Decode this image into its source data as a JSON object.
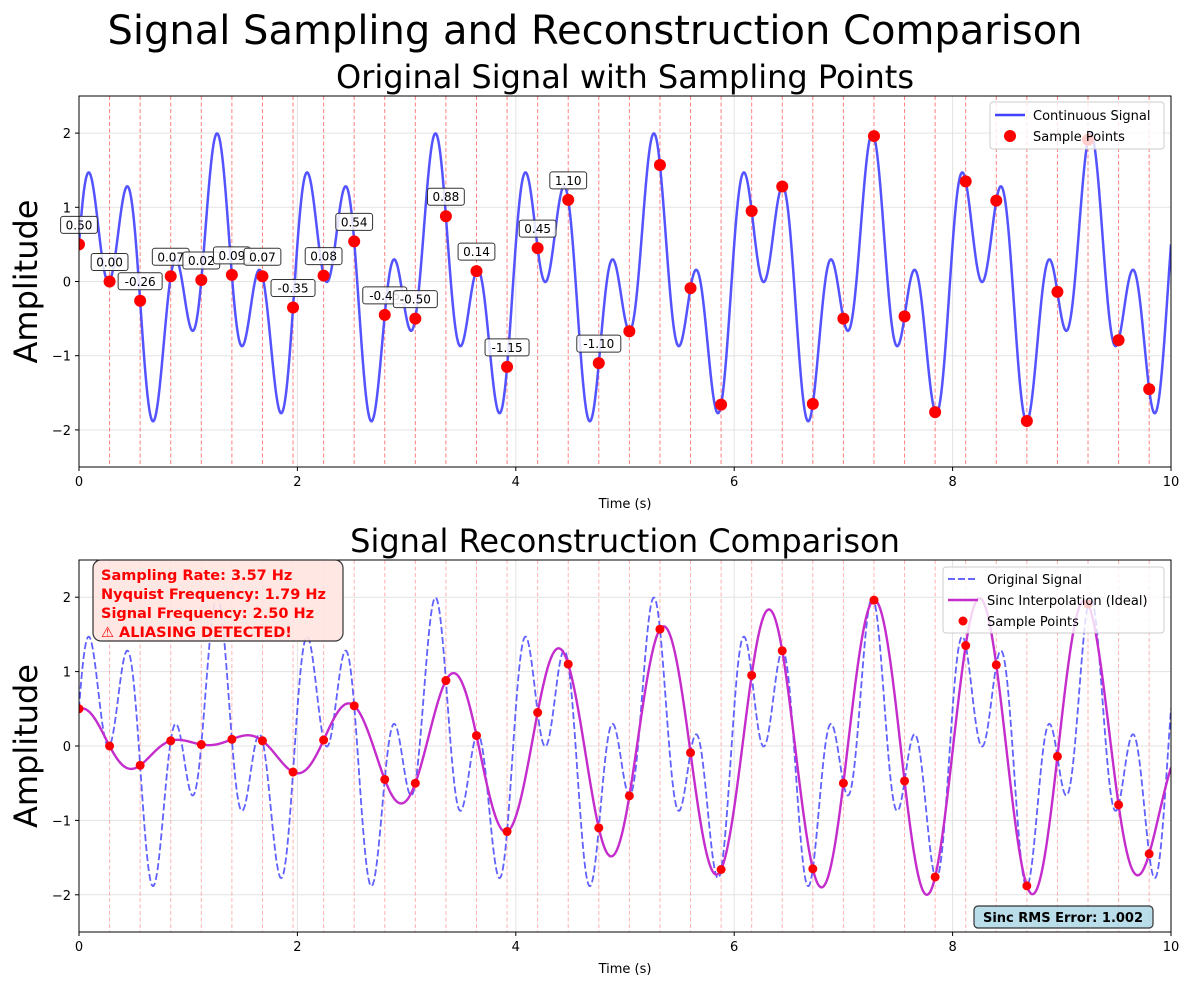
{
  "figure": {
    "title": "Signal Sampling and Reconstruction Comparison"
  },
  "chart_data": [
    {
      "type": "line",
      "title": "Original Signal with Sampling Points",
      "xlabel": "Time (s)",
      "ylabel": "Amplitude",
      "xlim": [
        0,
        10
      ],
      "ylim": [
        -2.5,
        2.5
      ],
      "xticks": [
        0,
        2,
        4,
        6,
        8,
        10
      ],
      "yticks": [
        -2,
        -1,
        0,
        1,
        2
      ],
      "grid": true,
      "legend": {
        "placement": "upper right",
        "entries": [
          "Continuous Signal",
          "Sample Points"
        ]
      },
      "continuous_signal": {
        "name": "Continuous Signal",
        "color": "#4040ff",
        "components": [
          {
            "function": "sin",
            "frequency_hz": 1.0,
            "amplitude": 1.0,
            "phase_deg": 0
          },
          {
            "function": "sin",
            "frequency_hz": 2.5,
            "amplitude": 1.0,
            "phase_deg": 30
          }
        ]
      },
      "sample_points": {
        "name": "Sample Points",
        "color": "#ff0000"
      },
      "sample_lines_color": "#ff0000",
      "value_labels": [
        "0.50",
        "0.00",
        "-0.26",
        "0.07",
        "0.02",
        "0.09",
        "0.07",
        "-0.35",
        "0.08",
        "0.54",
        "-0.45",
        "-0.50",
        "0.88",
        "0.14",
        "-1.15",
        "0.45",
        "1.10",
        "-1.10"
      ]
    },
    {
      "type": "line",
      "title": "Signal Reconstruction Comparison",
      "xlabel": "Time (s)",
      "ylabel": "Amplitude",
      "xlim": [
        0,
        10
      ],
      "ylim": [
        -2.5,
        2.5
      ],
      "xticks": [
        0,
        2,
        4,
        6,
        8,
        10
      ],
      "yticks": [
        -2,
        -1,
        0,
        1,
        2
      ],
      "grid": true,
      "legend": {
        "placement": "upper right",
        "entries": [
          "Original Signal",
          "Sinc Interpolation (Ideal)",
          "Sample Points"
        ]
      },
      "series_styles": {
        "original": {
          "color": "#5050ff",
          "dash": "dashed"
        },
        "sinc": {
          "color": "#c42ccc",
          "dash": "solid"
        },
        "samples": {
          "color": "#ff0000"
        }
      },
      "info_box": {
        "lines": [
          "Sampling Rate: 3.57 Hz",
          "Nyquist Frequency: 1.79 Hz",
          "Signal Frequency: 2.50 Hz",
          "⚠ ALIASING DETECTED!"
        ],
        "color": "#ff0000",
        "background": "#ffe4e1"
      },
      "error_box": {
        "text": "Sinc RMS Error: 1.002",
        "background": "#add8e6"
      }
    }
  ],
  "samples": {
    "sampling_rate_hz": 3.5714,
    "t": [
      0.0,
      0.28,
      0.56,
      0.84,
      1.12,
      1.4,
      1.68,
      1.96,
      2.24,
      2.52,
      2.8,
      3.08,
      3.36,
      3.64,
      3.92,
      4.2,
      4.48,
      4.76,
      5.04,
      5.32,
      5.6,
      5.88,
      6.16,
      6.44,
      6.72,
      7.0,
      7.28,
      7.56,
      7.84,
      8.12,
      8.4,
      8.68,
      8.96,
      9.24,
      9.52,
      9.8
    ],
    "values": [
      0.5,
      0.0,
      -0.26,
      0.07,
      0.02,
      0.09,
      0.07,
      -0.35,
      0.08,
      0.54,
      -0.45,
      -0.5,
      0.88,
      0.14,
      -1.15,
      0.45,
      1.1,
      -1.1,
      -0.67,
      1.57,
      -0.09,
      -1.66,
      0.95,
      1.28,
      -1.65,
      -0.5,
      1.96,
      -0.47,
      -1.76,
      1.35,
      1.09,
      -1.88,
      -0.14,
      1.91,
      -0.79,
      -1.45
    ]
  }
}
